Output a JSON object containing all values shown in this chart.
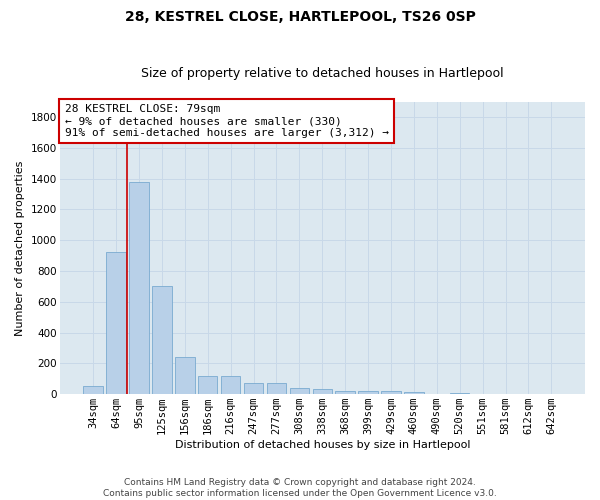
{
  "title": "28, KESTREL CLOSE, HARTLEPOOL, TS26 0SP",
  "subtitle": "Size of property relative to detached houses in Hartlepool",
  "xlabel": "Distribution of detached houses by size in Hartlepool",
  "ylabel": "Number of detached properties",
  "categories": [
    "34sqm",
    "64sqm",
    "95sqm",
    "125sqm",
    "156sqm",
    "186sqm",
    "216sqm",
    "247sqm",
    "277sqm",
    "308sqm",
    "338sqm",
    "368sqm",
    "399sqm",
    "429sqm",
    "460sqm",
    "490sqm",
    "520sqm",
    "551sqm",
    "581sqm",
    "612sqm",
    "642sqm"
  ],
  "values": [
    55,
    920,
    1380,
    700,
    240,
    120,
    115,
    75,
    70,
    40,
    35,
    22,
    20,
    18,
    12,
    0,
    8,
    0,
    0,
    0,
    0
  ],
  "bar_color": "#b8d0e8",
  "bar_edgecolor": "#7aaad0",
  "vline_color": "#cc0000",
  "vline_x": 1.48,
  "annotation_text": "28 KESTREL CLOSE: 79sqm\n← 9% of detached houses are smaller (330)\n91% of semi-detached houses are larger (3,312) →",
  "annotation_box_facecolor": "#ffffff",
  "annotation_box_edgecolor": "#cc0000",
  "ylim": [
    0,
    1900
  ],
  "yticks": [
    0,
    200,
    400,
    600,
    800,
    1000,
    1200,
    1400,
    1600,
    1800
  ],
  "grid_color": "#c8d8e8",
  "background_color": "#dce8f0",
  "footer_text": "Contains HM Land Registry data © Crown copyright and database right 2024.\nContains public sector information licensed under the Open Government Licence v3.0.",
  "title_fontsize": 10,
  "subtitle_fontsize": 9,
  "axis_label_fontsize": 8,
  "tick_fontsize": 7.5,
  "annotation_fontsize": 8,
  "footer_fontsize": 6.5
}
